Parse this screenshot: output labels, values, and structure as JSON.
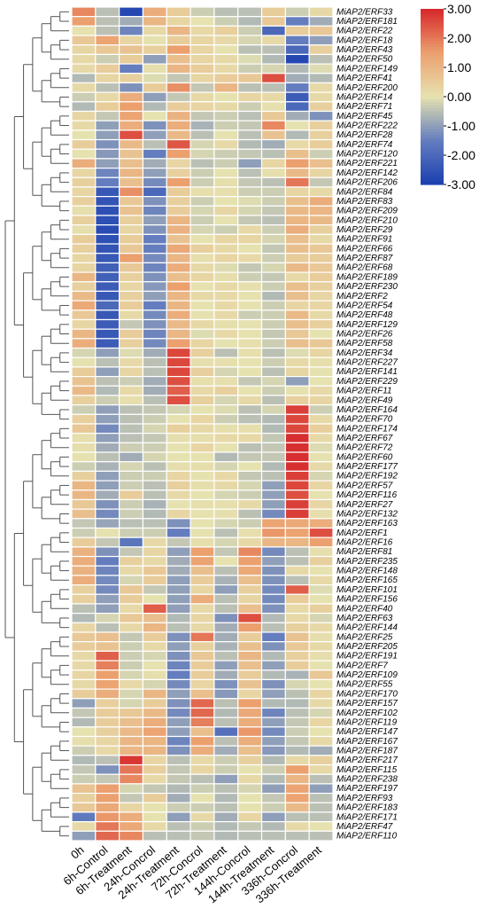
{
  "chart_data": {
    "type": "heatmap",
    "columns": [
      "0h",
      "6h-Control",
      "6h-Treatment",
      "24h-Concrol",
      "24h-Treatment",
      "72h-Concrol",
      "72h-Treatment",
      "144h-Concrol",
      "144h-Treatment",
      "336h-Concrol",
      "336h-Treatment"
    ],
    "rows": [
      "MiAP2/ERF33",
      "MiAP2/ERF181",
      "MiAP2/ERF22",
      "MiAP2/ERF18",
      "MiAP2/ERF43",
      "MiAP2/ERF50",
      "MiAP2/ERF149",
      "MiAP2/ERF41",
      "MiAP2/ERF200",
      "MiAP2/ERF14",
      "MiAP2/ERF71",
      "MiAP2/ERF45",
      "MiAP2/ERF222",
      "MiAP2/ERF28",
      "MiAP2/ERF74",
      "MiAP2/ERF120",
      "MiAP2/ERF221",
      "MiAP2/ERF142",
      "MiAP2/ERF206",
      "MiAP2/ERF84",
      "MiAP2/ERF83",
      "MiAP2/ERF209",
      "MiAP2/ERF210",
      "MiAP2/ERF29",
      "MiAP2/ERF91",
      "MiAP2/ERF66",
      "MiAP2/ERF87",
      "MiAP2/ERF68",
      "MiAP2/ERF189",
      "MiAP2/ERF230",
      "MiAP2/ERF2",
      "MiAP2/ERF54",
      "MiAP2/ERF48",
      "MiAP2/ERF129",
      "MiAP2/ERF26",
      "MiAP2/ERF58",
      "MiAP2/ERF34",
      "MiAP2/ERF227",
      "MiAP2/ERF141",
      "MiAP2/ERF229",
      "MiAP2/ERF11",
      "MiAP2/ERF49",
      "MiAP2/ERF164",
      "MiAP2/ERF70",
      "MiAP2/ERF174",
      "MiAP2/ERF67",
      "MiAP2/ERF72",
      "MiAP2/ERF60",
      "MiAP2/ERF177",
      "MiAP2/ERF192",
      "MiAP2/ERF57",
      "MiAP2/ERF116",
      "MiAP2/ERF27",
      "MiAP2/ERF132",
      "MiAP2/ERF163",
      "MiAP2/ERF1",
      "MiAP2/ERF16",
      "MiAP2/ERF81",
      "MiAP2/ERF235",
      "MiAP2/ERF148",
      "MiAP2/ERF165",
      "MiAP2/ERF101",
      "MiAP2/ERF156",
      "MiAP2/ERF40",
      "MiAP2/ERF63",
      "MiAP2/ERF144",
      "MiAP2/ERF25",
      "MiAP2/ERF205",
      "MiAP2/ERF191",
      "MiAP2/ERF7",
      "MiAP2/ERF109",
      "MiAP2/ERF55",
      "MiAP2/ERF170",
      "MiAP2/ERF157",
      "MiAP2/ERF102",
      "MiAP2/ERF119",
      "MiAP2/ERF147",
      "MiAP2/ERF167",
      "MiAP2/ERF187",
      "MiAP2/ERF217",
      "MiAP2/ERF115",
      "MiAP2/ERF238",
      "MiAP2/ERF197",
      "MiAP2/ERF93",
      "MiAP2/ERF183",
      "MiAP2/ERF171",
      "MiAP2/ERF47",
      "MiAP2/ERF110"
    ],
    "values": [
      [
        1.8,
        -0.5,
        -2.8,
        1.2,
        0.5,
        -0.3,
        -0.5,
        -0.5,
        0.5,
        -0.3,
        0.2
      ],
      [
        1.5,
        -0.5,
        -0.8,
        1.0,
        0.3,
        0.0,
        -0.3,
        -0.6,
        0.6,
        -1.5,
        -0.8
      ],
      [
        0.0,
        -0.5,
        -1.4,
        0.2,
        1.0,
        0.2,
        0.4,
        -0.3,
        -2.0,
        0.5,
        0.6
      ],
      [
        0.6,
        1.4,
        0.3,
        0.0,
        0.5,
        0.3,
        0.2,
        -0.2,
        0.2,
        -1.5,
        -1.0
      ],
      [
        0.3,
        0.6,
        0.7,
        0.4,
        1.5,
        0.3,
        0.0,
        -0.5,
        -0.5,
        -2.0,
        0.4
      ],
      [
        0.2,
        -0.3,
        0.5,
        -1.0,
        0.8,
        0.3,
        0.2,
        -0.1,
        -0.6,
        -2.8,
        -0.5
      ],
      [
        0.2,
        0.5,
        -1.5,
        0.1,
        1.0,
        0.5,
        0.2,
        -0.3,
        -0.2,
        -0.6,
        -0.1
      ],
      [
        -0.6,
        0.3,
        0.4,
        -0.1,
        -0.4,
        0.3,
        0.5,
        0.6,
        2.5,
        -0.8,
        -0.6
      ],
      [
        0.2,
        -0.5,
        -1.2,
        0.5,
        1.7,
        -0.4,
        1.0,
        -0.5,
        -0.5,
        -1.5,
        0.2
      ],
      [
        -0.3,
        0.2,
        1.2,
        -1.0,
        -0.4,
        0.2,
        0.0,
        0.3,
        0.2,
        -2.3,
        0.2
      ],
      [
        -0.6,
        0.5,
        1.5,
        -0.6,
        0.5,
        0.3,
        0.2,
        -0.3,
        0.1,
        -2.0,
        0.4
      ],
      [
        0.3,
        -0.4,
        1.4,
        0.0,
        1.1,
        -0.4,
        -0.3,
        -0.5,
        0.6,
        -0.8,
        -1.2
      ],
      [
        0.2,
        -1.0,
        1.2,
        -1.2,
        1.2,
        -0.7,
        -0.3,
        -0.4,
        1.8,
        0.0,
        0.4
      ],
      [
        0.0,
        -1.0,
        2.5,
        -1.0,
        0.9,
        -0.5,
        0.0,
        -0.5,
        0.7,
        -0.6,
        0.4
      ],
      [
        0.5,
        -1.2,
        0.9,
        -0.5,
        2.4,
        -0.2,
        0.2,
        -0.6,
        -0.8,
        0.2,
        0.5
      ],
      [
        0.0,
        -1.1,
        0.7,
        -1.5,
        1.5,
        -0.2,
        -0.3,
        -0.4,
        -0.5,
        0.8,
        -0.3
      ],
      [
        1.2,
        -1.0,
        0.8,
        -0.8,
        0.3,
        -0.5,
        -0.3,
        -1.0,
        0.3,
        1.5,
        0.8
      ],
      [
        0.3,
        -1.4,
        1.0,
        -1.0,
        0.4,
        -0.3,
        0.0,
        -0.5,
        0.1,
        0.9,
        0.3
      ],
      [
        0.4,
        -1.5,
        0.8,
        -1.3,
        1.5,
        -0.3,
        0.1,
        -0.4,
        -0.5,
        2.0,
        -0.4
      ],
      [
        0.3,
        -2.4,
        1.7,
        -2.0,
        0.5,
        0.1,
        0.1,
        -0.3,
        -0.3,
        0.3,
        0.2
      ],
      [
        0.4,
        -2.5,
        0.6,
        -1.2,
        0.4,
        -0.3,
        0.0,
        -0.1,
        -0.3,
        0.8,
        1.2
      ],
      [
        0.1,
        -2.6,
        0.7,
        -1.4,
        0.5,
        -0.2,
        0.3,
        -0.2,
        -0.4,
        0.9,
        1.0
      ],
      [
        0.4,
        -2.6,
        0.4,
        -1.0,
        1.0,
        -0.3,
        0.0,
        -0.4,
        -0.5,
        1.0,
        0.9
      ],
      [
        0.1,
        -2.7,
        0.3,
        -1.2,
        1.1,
        -0.2,
        -0.3,
        0.2,
        -0.3,
        1.2,
        0.4
      ],
      [
        0.5,
        -2.6,
        0.5,
        -1.5,
        0.7,
        0.0,
        0.3,
        0.3,
        -0.2,
        0.8,
        0.2
      ],
      [
        0.4,
        -2.5,
        0.6,
        -1.5,
        1.3,
        0.4,
        0.2,
        0.0,
        -0.4,
        0.8,
        0.6
      ],
      [
        0.3,
        -2.4,
        1.5,
        -1.3,
        1.0,
        0.1,
        0.3,
        0.2,
        -0.3,
        0.5,
        0.5
      ],
      [
        0.3,
        -2.2,
        0.6,
        -1.4,
        1.2,
        0.2,
        -0.1,
        -0.4,
        -0.2,
        0.9,
        0.6
      ],
      [
        1.0,
        -2.2,
        0.4,
        -1.2,
        0.8,
        0.3,
        0.1,
        -0.3,
        -0.4,
        0.2,
        0.5
      ],
      [
        0.4,
        -2.3,
        0.3,
        -1.1,
        1.5,
        0.0,
        0.2,
        0.1,
        -0.3,
        0.8,
        0.4
      ],
      [
        0.9,
        -2.4,
        0.4,
        -1.0,
        1.0,
        0.2,
        0.2,
        0.0,
        -0.6,
        0.8,
        0.3
      ],
      [
        1.3,
        -2.0,
        0.5,
        -1.5,
        1.0,
        0.0,
        0.2,
        0.0,
        -0.3,
        0.3,
        0.3
      ],
      [
        0.6,
        -2.4,
        0.2,
        -1.3,
        1.2,
        0.0,
        0.2,
        -0.3,
        -0.3,
        0.9,
        0.2
      ],
      [
        0.3,
        -2.3,
        -0.4,
        -1.2,
        0.9,
        0.2,
        0.1,
        0.0,
        -0.3,
        0.8,
        0.4
      ],
      [
        1.0,
        -2.4,
        0.5,
        -1.4,
        1.0,
        -0.1,
        0.2,
        0.0,
        -0.4,
        0.6,
        0.0
      ],
      [
        1.2,
        -2.3,
        0.4,
        -1.3,
        1.5,
        0.3,
        0.0,
        0.1,
        -0.3,
        0.8,
        0.6
      ],
      [
        -0.2,
        -1.0,
        -0.1,
        -0.8,
        2.6,
        0.4,
        -0.5,
        0.1,
        -0.5,
        -0.1,
        0.3
      ],
      [
        0.0,
        -0.5,
        0.2,
        -0.5,
        2.6,
        0.1,
        0.1,
        0.0,
        -0.3,
        0.2,
        0.1
      ],
      [
        0.5,
        -1.0,
        0.3,
        -0.5,
        2.6,
        0.4,
        -0.2,
        0.0,
        -0.5,
        0.3,
        0.0
      ],
      [
        0.7,
        -0.5,
        -0.3,
        -0.8,
        2.5,
        0.1,
        0.1,
        -0.4,
        -0.2,
        -1.0,
        0.0
      ],
      [
        0.9,
        -0.6,
        0.2,
        -0.8,
        2.3,
        0.2,
        0.4,
        0.0,
        -0.3,
        0.0,
        0.2
      ],
      [
        0.4,
        -0.3,
        0.1,
        -0.5,
        2.5,
        0.4,
        -0.2,
        0.2,
        -0.5,
        0.4,
        0.3
      ],
      [
        -0.3,
        -1.0,
        -0.5,
        -0.4,
        -0.2,
        0.0,
        -0.1,
        -0.5,
        -0.2,
        2.7,
        -0.3
      ],
      [
        0.4,
        -1.0,
        -0.5,
        -0.3,
        0.0,
        0.3,
        -0.3,
        -0.5,
        -0.6,
        2.6,
        0.2
      ],
      [
        0.6,
        -1.3,
        -0.5,
        -0.2,
        0.4,
        0.2,
        0.1,
        0.1,
        -0.6,
        2.6,
        0.4
      ],
      [
        0.1,
        -1.0,
        -0.5,
        -0.4,
        0.1,
        0.1,
        0.2,
        0.2,
        -0.4,
        2.9,
        0.2
      ],
      [
        0.1,
        -0.8,
        -0.3,
        -0.3,
        0.0,
        0.3,
        0.0,
        -0.5,
        -0.4,
        2.9,
        -0.1
      ],
      [
        0.0,
        -0.5,
        -0.8,
        -0.2,
        0.0,
        0.0,
        -0.6,
        -0.4,
        -0.4,
        2.9,
        0.0
      ],
      [
        -0.3,
        -0.7,
        -0.2,
        -0.5,
        0.1,
        0.1,
        -0.2,
        0.0,
        -0.6,
        2.9,
        0.2
      ],
      [
        0.4,
        -1.0,
        -0.3,
        -0.3,
        0.3,
        0.0,
        0.2,
        -0.4,
        -0.5,
        2.7,
        -0.2
      ],
      [
        1.0,
        -1.0,
        -0.3,
        -0.5,
        0.4,
        0.1,
        0.2,
        -0.2,
        -1.0,
        2.6,
        0.3
      ],
      [
        1.0,
        -0.8,
        0.5,
        -0.5,
        0.2,
        0.0,
        -0.2,
        -0.3,
        -1.0,
        2.5,
        0.0
      ],
      [
        0.6,
        -1.2,
        -0.3,
        -0.7,
        0.0,
        0.1,
        0.1,
        0.2,
        -1.0,
        2.7,
        0.3
      ],
      [
        0.8,
        -1.3,
        -0.3,
        -0.6,
        0.3,
        0.0,
        0.1,
        -0.5,
        -1.3,
        2.7,
        0.1
      ],
      [
        -0.4,
        -0.9,
        -0.5,
        -0.5,
        -1.2,
        0.0,
        -0.2,
        -0.3,
        1.4,
        1.3,
        1.2
      ],
      [
        -0.3,
        0.0,
        -0.3,
        -0.3,
        -1.5,
        0.0,
        -0.5,
        0.1,
        1.6,
        1.4,
        2.5
      ],
      [
        0.5,
        -0.4,
        -1.7,
        0.2,
        -0.4,
        0.1,
        -0.2,
        0.2,
        1.0,
        1.0,
        1.5
      ],
      [
        1.1,
        -1.2,
        -0.4,
        0.3,
        -1.0,
        1.5,
        -0.4,
        1.8,
        -1.3,
        -0.5,
        0.1
      ],
      [
        1.2,
        -1.5,
        0.4,
        0.2,
        -0.8,
        1.4,
        0.0,
        1.5,
        -1.0,
        -0.5,
        0.4
      ],
      [
        1.1,
        -1.4,
        0.2,
        0.6,
        -0.8,
        0.8,
        -0.5,
        1.3,
        -1.2,
        0.2,
        0.0
      ],
      [
        1.2,
        -1.3,
        -0.2,
        0.5,
        -1.0,
        0.5,
        -0.7,
        0.8,
        -1.2,
        -0.5,
        0.2
      ],
      [
        0.4,
        -1.3,
        0.6,
        -0.4,
        -1.0,
        0.3,
        -1.0,
        0.4,
        -1.3,
        2.3,
        -0.1
      ],
      [
        0.4,
        -1.0,
        0.5,
        0.0,
        -1.0,
        1.2,
        -0.5,
        0.3,
        -1.3,
        0.5,
        0.0
      ],
      [
        -0.5,
        -1.0,
        0.2,
        2.3,
        -1.0,
        0.2,
        -0.5,
        0.8,
        -1.2,
        0.2,
        0.4
      ],
      [
        -0.6,
        -0.2,
        0.6,
        0.8,
        -0.6,
        0.3,
        -1.2,
        2.5,
        -0.6,
        0.2,
        -0.2
      ],
      [
        0.3,
        -0.5,
        0.2,
        1.0,
        -0.5,
        0.2,
        -0.8,
        1.5,
        -0.5,
        0.4,
        0.2
      ],
      [
        0.6,
        0.8,
        -0.4,
        0.5,
        -1.2,
        2.0,
        -0.8,
        0.5,
        -1.5,
        0.7,
        0.1
      ],
      [
        0.5,
        0.7,
        -0.3,
        0.2,
        -1.0,
        0.4,
        -0.7,
        0.8,
        -1.2,
        0.6,
        0.2
      ],
      [
        0.2,
        2.3,
        -0.3,
        -0.2,
        -1.2,
        0.6,
        -0.5,
        1.0,
        -0.6,
        0.4,
        0.1
      ],
      [
        0.2,
        1.9,
        -0.3,
        0.0,
        -1.4,
        0.5,
        -1.0,
        0.8,
        -1.0,
        0.5,
        0.0
      ],
      [
        0.3,
        1.5,
        -0.2,
        0.1,
        -1.5,
        0.5,
        -0.8,
        0.5,
        -0.6,
        -0.7,
        0.6
      ],
      [
        0.2,
        1.4,
        0.2,
        -0.2,
        -1.3,
        0.3,
        -1.2,
        0.7,
        -1.2,
        -0.2,
        0.0
      ],
      [
        0.5,
        1.2,
        -0.2,
        1.0,
        -1.0,
        0.8,
        -1.1,
        0.3,
        -1.0,
        -0.5,
        0.3
      ],
      [
        -1.0,
        0.4,
        -0.2,
        0.5,
        -1.2,
        2.2,
        -0.5,
        1.5,
        -0.6,
        -0.6,
        0.2
      ],
      [
        -0.4,
        0.5,
        0.6,
        0.9,
        -1.3,
        2.2,
        -0.6,
        1.3,
        -1.4,
        -0.5,
        -0.2
      ],
      [
        -0.6,
        0.5,
        0.8,
        1.2,
        -1.0,
        1.9,
        -0.5,
        1.2,
        -1.0,
        -0.4,
        0.3
      ],
      [
        0.0,
        0.4,
        0.9,
        1.4,
        -1.0,
        0.8,
        -1.8,
        1.6,
        -1.3,
        -0.3,
        0.0
      ],
      [
        0.1,
        0.3,
        1.0,
        1.0,
        -1.4,
        1.5,
        -0.5,
        1.2,
        -1.0,
        -0.4,
        0.2
      ],
      [
        -0.3,
        0.2,
        1.0,
        1.0,
        -1.2,
        1.2,
        -0.8,
        0.8,
        -1.1,
        -0.6,
        -0.8
      ],
      [
        -0.6,
        -0.5,
        2.8,
        0.3,
        -0.5,
        0.2,
        -0.3,
        0.4,
        -0.6,
        0.2,
        0.4
      ],
      [
        -0.4,
        -1.2,
        2.0,
        0.4,
        -0.4,
        0.3,
        -0.3,
        0.0,
        -0.3,
        1.5,
        0.2
      ],
      [
        -0.3,
        -0.4,
        1.8,
        0.2,
        -0.4,
        -0.5,
        -1.0,
        0.2,
        -0.6,
        1.0,
        -0.5
      ],
      [
        0.7,
        1.5,
        -0.2,
        -0.4,
        -0.6,
        -0.3,
        -0.5,
        -0.2,
        -1.0,
        1.4,
        -1.0
      ],
      [
        0.4,
        1.5,
        -0.4,
        0.5,
        -0.8,
        0.0,
        -0.6,
        0.0,
        -0.4,
        1.4,
        -0.5
      ],
      [
        0.6,
        1.3,
        0.3,
        0.0,
        -0.3,
        -0.3,
        -0.5,
        0.0,
        -0.3,
        0.9,
        -0.5
      ],
      [
        -1.6,
        1.6,
        1.2,
        0.0,
        -1.0,
        0.2,
        -0.8,
        0.3,
        -1.0,
        -0.5,
        -0.5
      ],
      [
        0.2,
        2.0,
        1.3,
        0.2,
        -0.5,
        -0.3,
        -0.6,
        -0.4,
        -0.6,
        0.2,
        0.0
      ],
      [
        -1.0,
        2.2,
        1.8,
        -0.5,
        -0.5,
        -0.4,
        -0.6,
        -0.5,
        -0.5,
        -0.5,
        -0.5
      ]
    ],
    "colorbar": {
      "min": -3.0,
      "max": 3.0,
      "ticks": [
        "3.00",
        "2.00",
        "1.00",
        "0.00",
        "-1.00",
        "-2.00",
        "-3.00"
      ],
      "colors": {
        "low": "#1a3fb0",
        "mid": "#e6e2b0",
        "high": "#d6262a"
      }
    },
    "dendrogram": "row clustering tree on left side"
  }
}
